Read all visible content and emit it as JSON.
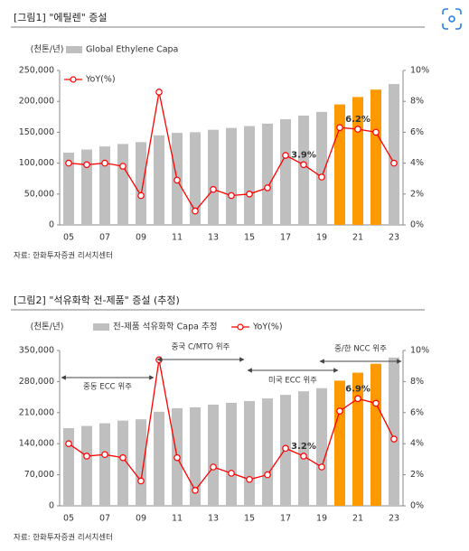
{
  "chart_data": [
    {
      "type": "combo",
      "title": "[그림1]  \"에틸렌\" 증설",
      "y_label": "(천톤/년)",
      "source": "자료: 한화투자증권 리서치센터",
      "categories": [
        "05",
        null,
        "07",
        null,
        "09",
        null,
        "11",
        null,
        "13",
        null,
        "15",
        null,
        "17",
        null,
        "19",
        null,
        "21",
        null,
        "23"
      ],
      "series": [
        {
          "name": "Global Ethylene Capa",
          "type": "bar",
          "color": "#bfbfbf",
          "colors": [
            "#bfbfbf",
            "#bfbfbf",
            "#bfbfbf",
            "#bfbfbf",
            "#bfbfbf",
            "#bfbfbf",
            "#bfbfbf",
            "#bfbfbf",
            "#bfbfbf",
            "#bfbfbf",
            "#bfbfbf",
            "#bfbfbf",
            "#bfbfbf",
            "#bfbfbf",
            "#bfbfbf",
            "#ff9900",
            "#ff9900",
            "#ff9900",
            "#bfbfbf"
          ],
          "values": [
            117000,
            122000,
            127000,
            131000,
            134000,
            145000,
            149000,
            150000,
            154000,
            157000,
            160000,
            164000,
            171000,
            177000,
            183000,
            195000,
            207000,
            219000,
            228000
          ]
        },
        {
          "name": "YoY(%)",
          "type": "line",
          "axis": "y2",
          "color": "#ff0000",
          "values": [
            4.0,
            3.9,
            4.0,
            3.8,
            1.9,
            8.6,
            2.9,
            0.9,
            2.3,
            1.9,
            2.0,
            2.4,
            4.5,
            3.9,
            3.1,
            6.3,
            6.2,
            6.0,
            4.0
          ],
          "value_labels": [
            null,
            null,
            null,
            null,
            null,
            null,
            null,
            null,
            null,
            null,
            null,
            null,
            null,
            "3.9%",
            null,
            null,
            "6.2%",
            null,
            null
          ]
        }
      ],
      "ylim": [
        0,
        250000
      ],
      "yticks": [
        0,
        {
          "value": 50000,
          "label": "50,000"
        },
        {
          "value": 100000,
          "label": "100,000"
        },
        {
          "value": 150000,
          "label": "150,000"
        },
        {
          "value": 200000,
          "label": "200,000"
        },
        {
          "value": 250000,
          "label": "250,000"
        }
      ],
      "y2lim": [
        0,
        10
      ],
      "y2ticks": [
        {
          "value": 0,
          "label": "0%"
        },
        {
          "value": 2,
          "label": "2%"
        },
        {
          "value": 4,
          "label": "4%"
        },
        {
          "value": 6,
          "label": "6%"
        },
        {
          "value": 8,
          "label": "8%"
        },
        {
          "value": 10,
          "label": "10%"
        }
      ]
    },
    {
      "type": "combo",
      "title": "[그림2]  \"석유화학 전-제품\" 증설 (추정)",
      "y_label": "(천톤/년)",
      "source": "자료: 한화투자증권 리서치센터",
      "categories": [
        "05",
        null,
        "07",
        null,
        "09",
        null,
        "11",
        null,
        "13",
        null,
        "15",
        null,
        "17",
        null,
        "19",
        null,
        "21",
        null,
        "23"
      ],
      "series": [
        {
          "name": "전-제품 석유화학 Capa 추정",
          "type": "bar",
          "color": "#bfbfbf",
          "colors": [
            "#bfbfbf",
            "#bfbfbf",
            "#bfbfbf",
            "#bfbfbf",
            "#bfbfbf",
            "#bfbfbf",
            "#bfbfbf",
            "#bfbfbf",
            "#bfbfbf",
            "#bfbfbf",
            "#bfbfbf",
            "#bfbfbf",
            "#bfbfbf",
            "#bfbfbf",
            "#bfbfbf",
            "#ff9900",
            "#ff9900",
            "#ff9900",
            "#bfbfbf"
          ],
          "values": [
            175000,
            180000,
            186000,
            192000,
            195000,
            212000,
            220000,
            222000,
            228000,
            232000,
            236000,
            242000,
            250000,
            258000,
            265000,
            282000,
            300000,
            320000,
            334000
          ]
        },
        {
          "name": "YoY(%)",
          "type": "line",
          "axis": "y2",
          "color": "#ff0000",
          "values": [
            4.0,
            3.2,
            3.3,
            3.1,
            1.6,
            9.4,
            3.1,
            1.0,
            2.5,
            2.1,
            1.7,
            2.0,
            3.7,
            3.2,
            2.5,
            6.1,
            6.9,
            6.6,
            4.3
          ],
          "value_labels": [
            null,
            null,
            null,
            null,
            null,
            null,
            null,
            null,
            null,
            null,
            null,
            null,
            null,
            "3.2%",
            null,
            null,
            "6.9%",
            null,
            null
          ]
        }
      ],
      "annotations": [
        "중동 ECC 위주",
        "중국 C/MTO 위주",
        "미국 ECC 위주",
        "중/한 NCC 위주"
      ],
      "ylim": [
        0,
        350000
      ],
      "yticks": [
        0,
        {
          "value": 70000,
          "label": "70,000"
        },
        {
          "value": 140000,
          "label": "140,000"
        },
        {
          "value": 210000,
          "label": "210,000"
        },
        {
          "value": 280000,
          "label": "280,000"
        },
        {
          "value": 350000,
          "label": "350,000"
        }
      ],
      "y2lim": [
        0,
        10
      ],
      "y2ticks": [
        {
          "value": 0,
          "label": "0%"
        },
        {
          "value": 2,
          "label": "2%"
        },
        {
          "value": 4,
          "label": "4%"
        },
        {
          "value": 6,
          "label": "6%"
        },
        {
          "value": 8,
          "label": "8%"
        },
        {
          "value": 10,
          "label": "10%"
        }
      ]
    }
  ]
}
